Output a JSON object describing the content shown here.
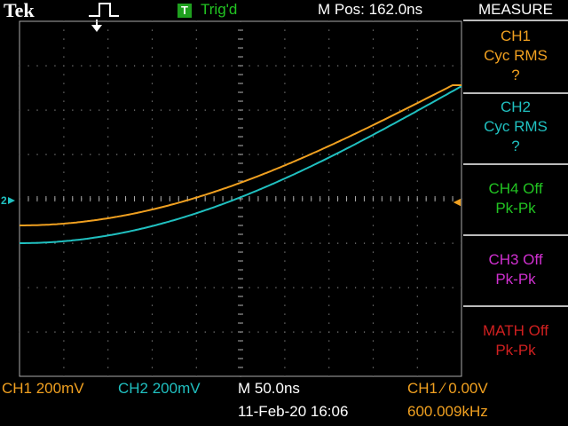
{
  "header": {
    "brand": "Tek",
    "trigger_badge": "T",
    "trigger_status": "Trig'd",
    "position_readout": "M Pos: 162.0ns"
  },
  "menu": {
    "title": "MEASURE",
    "buttons": [
      {
        "lines": [
          "CH1",
          "Cyc RMS",
          "?"
        ],
        "color": "#f0a020"
      },
      {
        "lines": [
          "CH2",
          "Cyc RMS",
          "?"
        ],
        "color": "#20c0c0"
      },
      {
        "lines": [
          "CH4 Off",
          "Pk-Pk"
        ],
        "color": "#22c422"
      },
      {
        "lines": [
          "CH3 Off",
          "Pk-Pk"
        ],
        "color": "#d030d0"
      },
      {
        "lines": [
          "MATH Off",
          "Pk-Pk"
        ],
        "color": "#d02020"
      }
    ]
  },
  "status": {
    "ch1_scale": "CH1  200mV",
    "ch2_scale": "CH2  200mV",
    "timebase": "M 50.0ns",
    "trigger_setting": "CH1 ∕ 0.00V",
    "date_time": "11-Feb-20 16:06",
    "frequency": "600.009kHz"
  },
  "markers": {
    "ground_ref": "2",
    "trigger_level_marker": "◄"
  },
  "colors": {
    "ch1": "#f0a020",
    "ch2": "#20c0c0",
    "grid": "#ffffff",
    "trigger_green": "#22c422"
  }
}
